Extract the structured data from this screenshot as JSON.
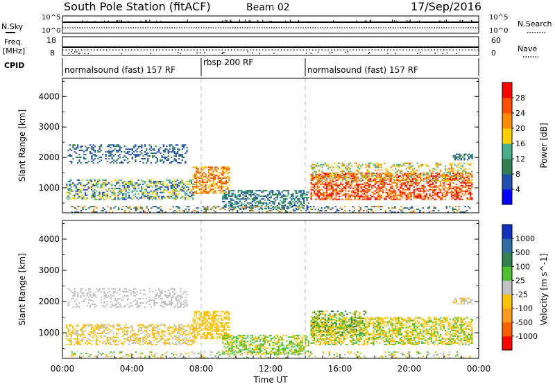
{
  "header": {
    "station": "South Pole Station (fitACF)",
    "beam": "Beam 02",
    "date": "17/Sep/2016"
  },
  "top_panels": {
    "nsky_label": "N.Sky",
    "nsky_ticks": [
      "10^5",
      "10^0"
    ],
    "nsearch_label": "N.Search",
    "nsearch_ticks": [
      "10^5",
      "10^0"
    ],
    "freq_label_1": "Freq.",
    "freq_label_2": "[MHz]",
    "freq_ticks": [
      "18",
      "8"
    ],
    "nave_label": "Nave",
    "nave_ticks": [
      "60",
      "0"
    ],
    "cpid_label": "CPID",
    "cpid_segments": [
      {
        "label": "normalsound (fast) 157 RF",
        "start": 0,
        "end": 8
      },
      {
        "label": "rbsp 200 RF",
        "start": 8,
        "end": 14
      },
      {
        "label": "normalsound (fast) 157 RF",
        "start": 14,
        "end": 24
      }
    ]
  },
  "x_axis": {
    "label": "Time UT",
    "ticks": [
      "00:00",
      "04:00",
      "08:00",
      "12:00",
      "16:00",
      "20:00",
      "00:00"
    ]
  },
  "chart_data": [
    {
      "type": "heatmap",
      "ylabel": "Slant Range [km]",
      "ylim": [
        180,
        4600
      ],
      "xlim": [
        0,
        24
      ],
      "yticks": [
        "1000",
        "2000",
        "3000",
        "4000"
      ],
      "colorbar": {
        "label": "Power [dB]",
        "ticks": [
          "28",
          "24",
          "20",
          "16",
          "12",
          "8",
          "4"
        ],
        "range": [
          0,
          32
        ],
        "colors": [
          "#0000ff",
          "#2250b0",
          "#2f7f4f",
          "#47b08a",
          "#ffd000",
          "#ff8a00",
          "#ff5000",
          "#ff0000"
        ]
      },
      "regions": [
        {
          "x0": 0.2,
          "x1": 7.6,
          "y0": 600,
          "y1": 1250,
          "values": [
            6,
            12,
            18
          ],
          "fill": 0.45
        },
        {
          "x0": 7.5,
          "x1": 9.6,
          "y0": 800,
          "y1": 1700,
          "values": [
            18,
            22,
            26
          ],
          "fill": 0.55
        },
        {
          "x0": 0.3,
          "x1": 7.2,
          "y0": 1800,
          "y1": 2400,
          "values": [
            4,
            6,
            10
          ],
          "fill": 0.3
        },
        {
          "x0": 9.2,
          "x1": 14.2,
          "y0": 300,
          "y1": 900,
          "values": [
            6,
            10,
            14
          ],
          "fill": 0.5
        },
        {
          "x0": 14.3,
          "x1": 23.6,
          "y0": 600,
          "y1": 1500,
          "values": [
            20,
            24,
            28
          ],
          "fill": 0.55
        },
        {
          "x0": 14.3,
          "x1": 23.6,
          "y0": 1200,
          "y1": 1800,
          "values": [
            12,
            16,
            20
          ],
          "fill": 0.3
        },
        {
          "x0": 0.5,
          "x1": 23.5,
          "y0": 180,
          "y1": 380,
          "values": [
            4,
            10,
            20
          ],
          "fill": 0.25
        },
        {
          "x0": 22.5,
          "x1": 23.6,
          "y0": 1900,
          "y1": 2100,
          "values": [
            4,
            8
          ],
          "fill": 0.5
        }
      ]
    },
    {
      "type": "heatmap",
      "ylabel": "Slant Range [km]",
      "ylim": [
        180,
        4600
      ],
      "xlim": [
        0,
        24
      ],
      "yticks": [
        "1000",
        "2000",
        "3000",
        "4000"
      ],
      "colorbar": {
        "label": "Velocity [m s^-1]",
        "ticks": [
          "1000",
          "500",
          "100",
          "25",
          "-25",
          "-100",
          "-500",
          "-1000"
        ],
        "range": [
          -1200,
          1200
        ],
        "colors": [
          "#ff0000",
          "#ff6000",
          "#ff9a20",
          "#ffc000",
          "#c0c0c0",
          "#50c030",
          "#308050",
          "#2f6fa0",
          "#1030c0"
        ]
      },
      "regions": [
        {
          "x0": 0.2,
          "x1": 7.6,
          "y0": 600,
          "y1": 1250,
          "values": [
            -200,
            -150,
            100
          ],
          "fill": 0.45
        },
        {
          "x0": 7.5,
          "x1": 9.6,
          "y0": 800,
          "y1": 1700,
          "values": [
            -300,
            -200,
            -150
          ],
          "fill": 0.55
        },
        {
          "x0": 0.3,
          "x1": 7.2,
          "y0": 1800,
          "y1": 2400,
          "values": [
            0,
            5
          ],
          "fill": 0.3
        },
        {
          "x0": 9.2,
          "x1": 14.2,
          "y0": 300,
          "y1": 900,
          "values": [
            -200,
            150,
            250
          ],
          "fill": 0.5
        },
        {
          "x0": 14.3,
          "x1": 23.6,
          "y0": 600,
          "y1": 1500,
          "values": [
            -200,
            -150,
            300
          ],
          "fill": 0.55
        },
        {
          "x0": 14.3,
          "x1": 17.5,
          "y0": 900,
          "y1": 1700,
          "values": [
            400,
            -150,
            150
          ],
          "fill": 0.4
        },
        {
          "x0": 0.5,
          "x1": 23.5,
          "y0": 180,
          "y1": 380,
          "values": [
            0,
            -150,
            150
          ],
          "fill": 0.2
        },
        {
          "x0": 22.5,
          "x1": 23.6,
          "y0": 1900,
          "y1": 2100,
          "values": [
            0,
            -150
          ],
          "fill": 0.5
        }
      ]
    }
  ]
}
